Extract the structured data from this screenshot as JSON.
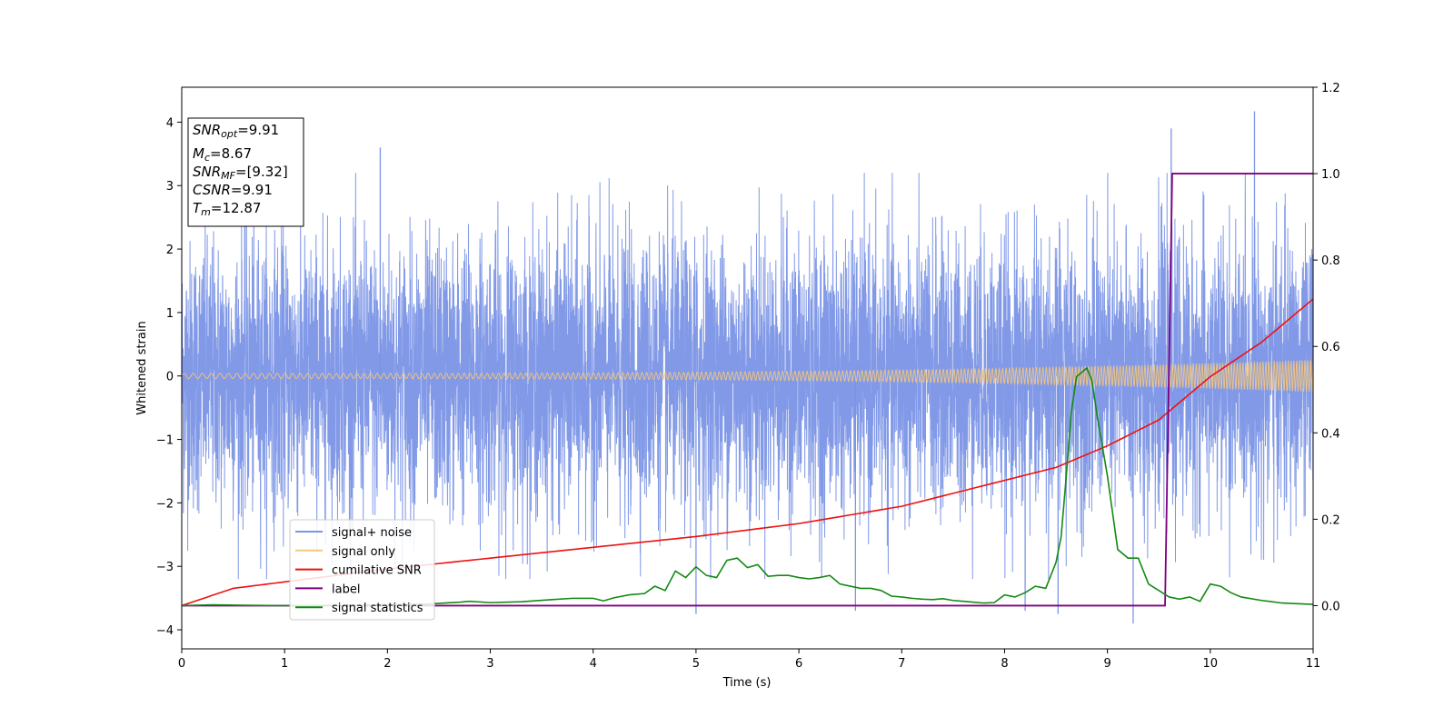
{
  "chart_data": {
    "type": "line",
    "xlabel": "Time (s)",
    "ylabel": "Whitened strain",
    "xlim": [
      0,
      11
    ],
    "ylim": [
      -4.3,
      4.55
    ],
    "y2lim": [
      -0.1,
      1.2
    ],
    "x_ticks": [
      "0",
      "1",
      "2",
      "3",
      "4",
      "5",
      "6",
      "7",
      "8",
      "9",
      "10",
      "11"
    ],
    "y_ticks": [
      "−4",
      "−3",
      "−2",
      "−1",
      "0",
      "1",
      "2",
      "3",
      "4"
    ],
    "y2_ticks": [
      "0.0",
      "0.2",
      "0.4",
      "0.6",
      "0.8",
      "1.0",
      "1.2"
    ],
    "legend_position": "lower-left",
    "annotation": {
      "lines": [
        {
          "base": "SNR",
          "sub": "opt",
          "value": "=9.91"
        },
        {
          "base": "M",
          "sub": "c",
          "value": "=8.67"
        },
        {
          "base": "SNR",
          "sub": "MF",
          "value": "=[9.32]"
        },
        {
          "base": "CSNR",
          "sub": "",
          "value": "=9.91"
        },
        {
          "base": "T",
          "sub": "m",
          "value": "=12.87"
        }
      ]
    },
    "series": [
      {
        "name": "signal+ noise",
        "axis": "left",
        "color": "#7a94e6",
        "description_range": [
          -3.9,
          4.17
        ],
        "spikes": [
          [
            1.93,
            3.6
          ],
          [
            9.62,
            3.9
          ],
          [
            10.43,
            4.17
          ],
          [
            5.0,
            -3.75
          ],
          [
            9.25,
            -3.9
          ],
          [
            8.52,
            -3.75
          ],
          [
            6.55,
            -3.7
          ],
          [
            8.2,
            -3.7
          ]
        ]
      },
      {
        "name": "signal only",
        "axis": "left",
        "color": "#f5c77b",
        "amplitude_start": 0.04,
        "amplitude_end": 0.25
      },
      {
        "name": "cumilative SNR",
        "axis": "right",
        "color": "#ee1111",
        "x": [
          0,
          0.5,
          1,
          2,
          3,
          4,
          5,
          6,
          7,
          8,
          8.5,
          9,
          9.5,
          10,
          10.5,
          11
        ],
        "y": [
          0.0,
          0.04,
          0.055,
          0.085,
          0.11,
          0.135,
          0.16,
          0.19,
          0.23,
          0.29,
          0.32,
          0.37,
          0.43,
          0.53,
          0.61,
          0.71
        ]
      },
      {
        "name": "label",
        "axis": "right",
        "color": "#800080",
        "x": [
          0,
          9.56,
          9.63,
          11
        ],
        "y": [
          0,
          0,
          1,
          1
        ]
      },
      {
        "name": "signal statistics",
        "axis": "right",
        "color": "#138a13",
        "x": [
          0,
          0.3,
          0.6,
          1.0,
          1.5,
          2.0,
          2.4,
          2.7,
          2.8,
          3.0,
          3.3,
          3.6,
          3.8,
          4.0,
          4.1,
          4.2,
          4.35,
          4.5,
          4.6,
          4.7,
          4.8,
          4.9,
          5.0,
          5.1,
          5.2,
          5.3,
          5.4,
          5.5,
          5.6,
          5.7,
          5.8,
          5.9,
          6.0,
          6.1,
          6.2,
          6.3,
          6.4,
          6.5,
          6.6,
          6.7,
          6.8,
          6.9,
          7.0,
          7.1,
          7.2,
          7.3,
          7.4,
          7.5,
          7.6,
          7.7,
          7.8,
          7.9,
          8.0,
          8.1,
          8.2,
          8.3,
          8.4,
          8.5,
          8.55,
          8.6,
          8.65,
          8.7,
          8.75,
          8.8,
          8.85,
          8.9,
          9.0,
          9.1,
          9.2,
          9.3,
          9.4,
          9.5,
          9.6,
          9.7,
          9.8,
          9.9,
          10.0,
          10.1,
          10.2,
          10.3,
          10.5,
          10.7,
          11.0
        ],
        "y": [
          0.0,
          0.002,
          0.001,
          0.0,
          0.001,
          0.002,
          0.004,
          0.008,
          0.01,
          0.007,
          0.009,
          0.014,
          0.017,
          0.017,
          0.011,
          0.018,
          0.025,
          0.028,
          0.045,
          0.035,
          0.08,
          0.065,
          0.09,
          0.07,
          0.065,
          0.105,
          0.11,
          0.088,
          0.095,
          0.068,
          0.07,
          0.07,
          0.065,
          0.062,
          0.065,
          0.07,
          0.05,
          0.045,
          0.04,
          0.04,
          0.035,
          0.022,
          0.02,
          0.017,
          0.015,
          0.014,
          0.016,
          0.012,
          0.01,
          0.008,
          0.006,
          0.007,
          0.025,
          0.02,
          0.03,
          0.045,
          0.04,
          0.1,
          0.16,
          0.3,
          0.45,
          0.53,
          0.54,
          0.55,
          0.52,
          0.44,
          0.3,
          0.13,
          0.11,
          0.11,
          0.05,
          0.035,
          0.02,
          0.015,
          0.02,
          0.01,
          0.05,
          0.045,
          0.03,
          0.02,
          0.012,
          0.006,
          0.003
        ]
      }
    ]
  }
}
